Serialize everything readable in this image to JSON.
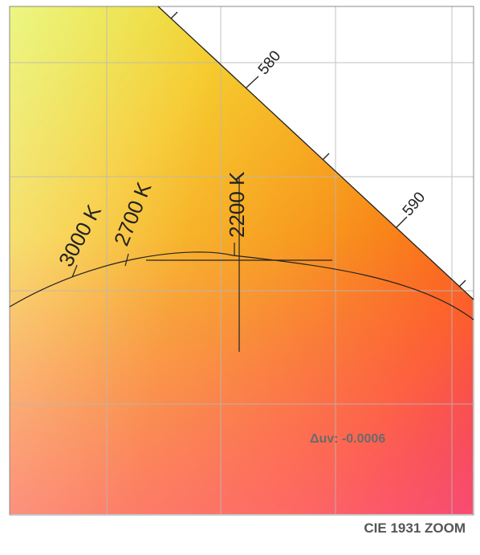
{
  "chart": {
    "caption": "CIE 1931 ZOOM",
    "delta_uv": "Δuv: -0.0006",
    "wavelength_labels": [
      "580",
      "590"
    ],
    "cct_labels": [
      "3000 K",
      "2700 K",
      "2200 K"
    ]
  },
  "colors": {
    "yellow_green": "#dcef1c",
    "yellow": "#f5d21a",
    "orange": "#f7a015",
    "deep_orange": "#fd6a08",
    "red": "#ee2a40",
    "pink": "#ff7799",
    "grid": "#b0b0b0",
    "frame": "#888888",
    "line": "#222222"
  }
}
